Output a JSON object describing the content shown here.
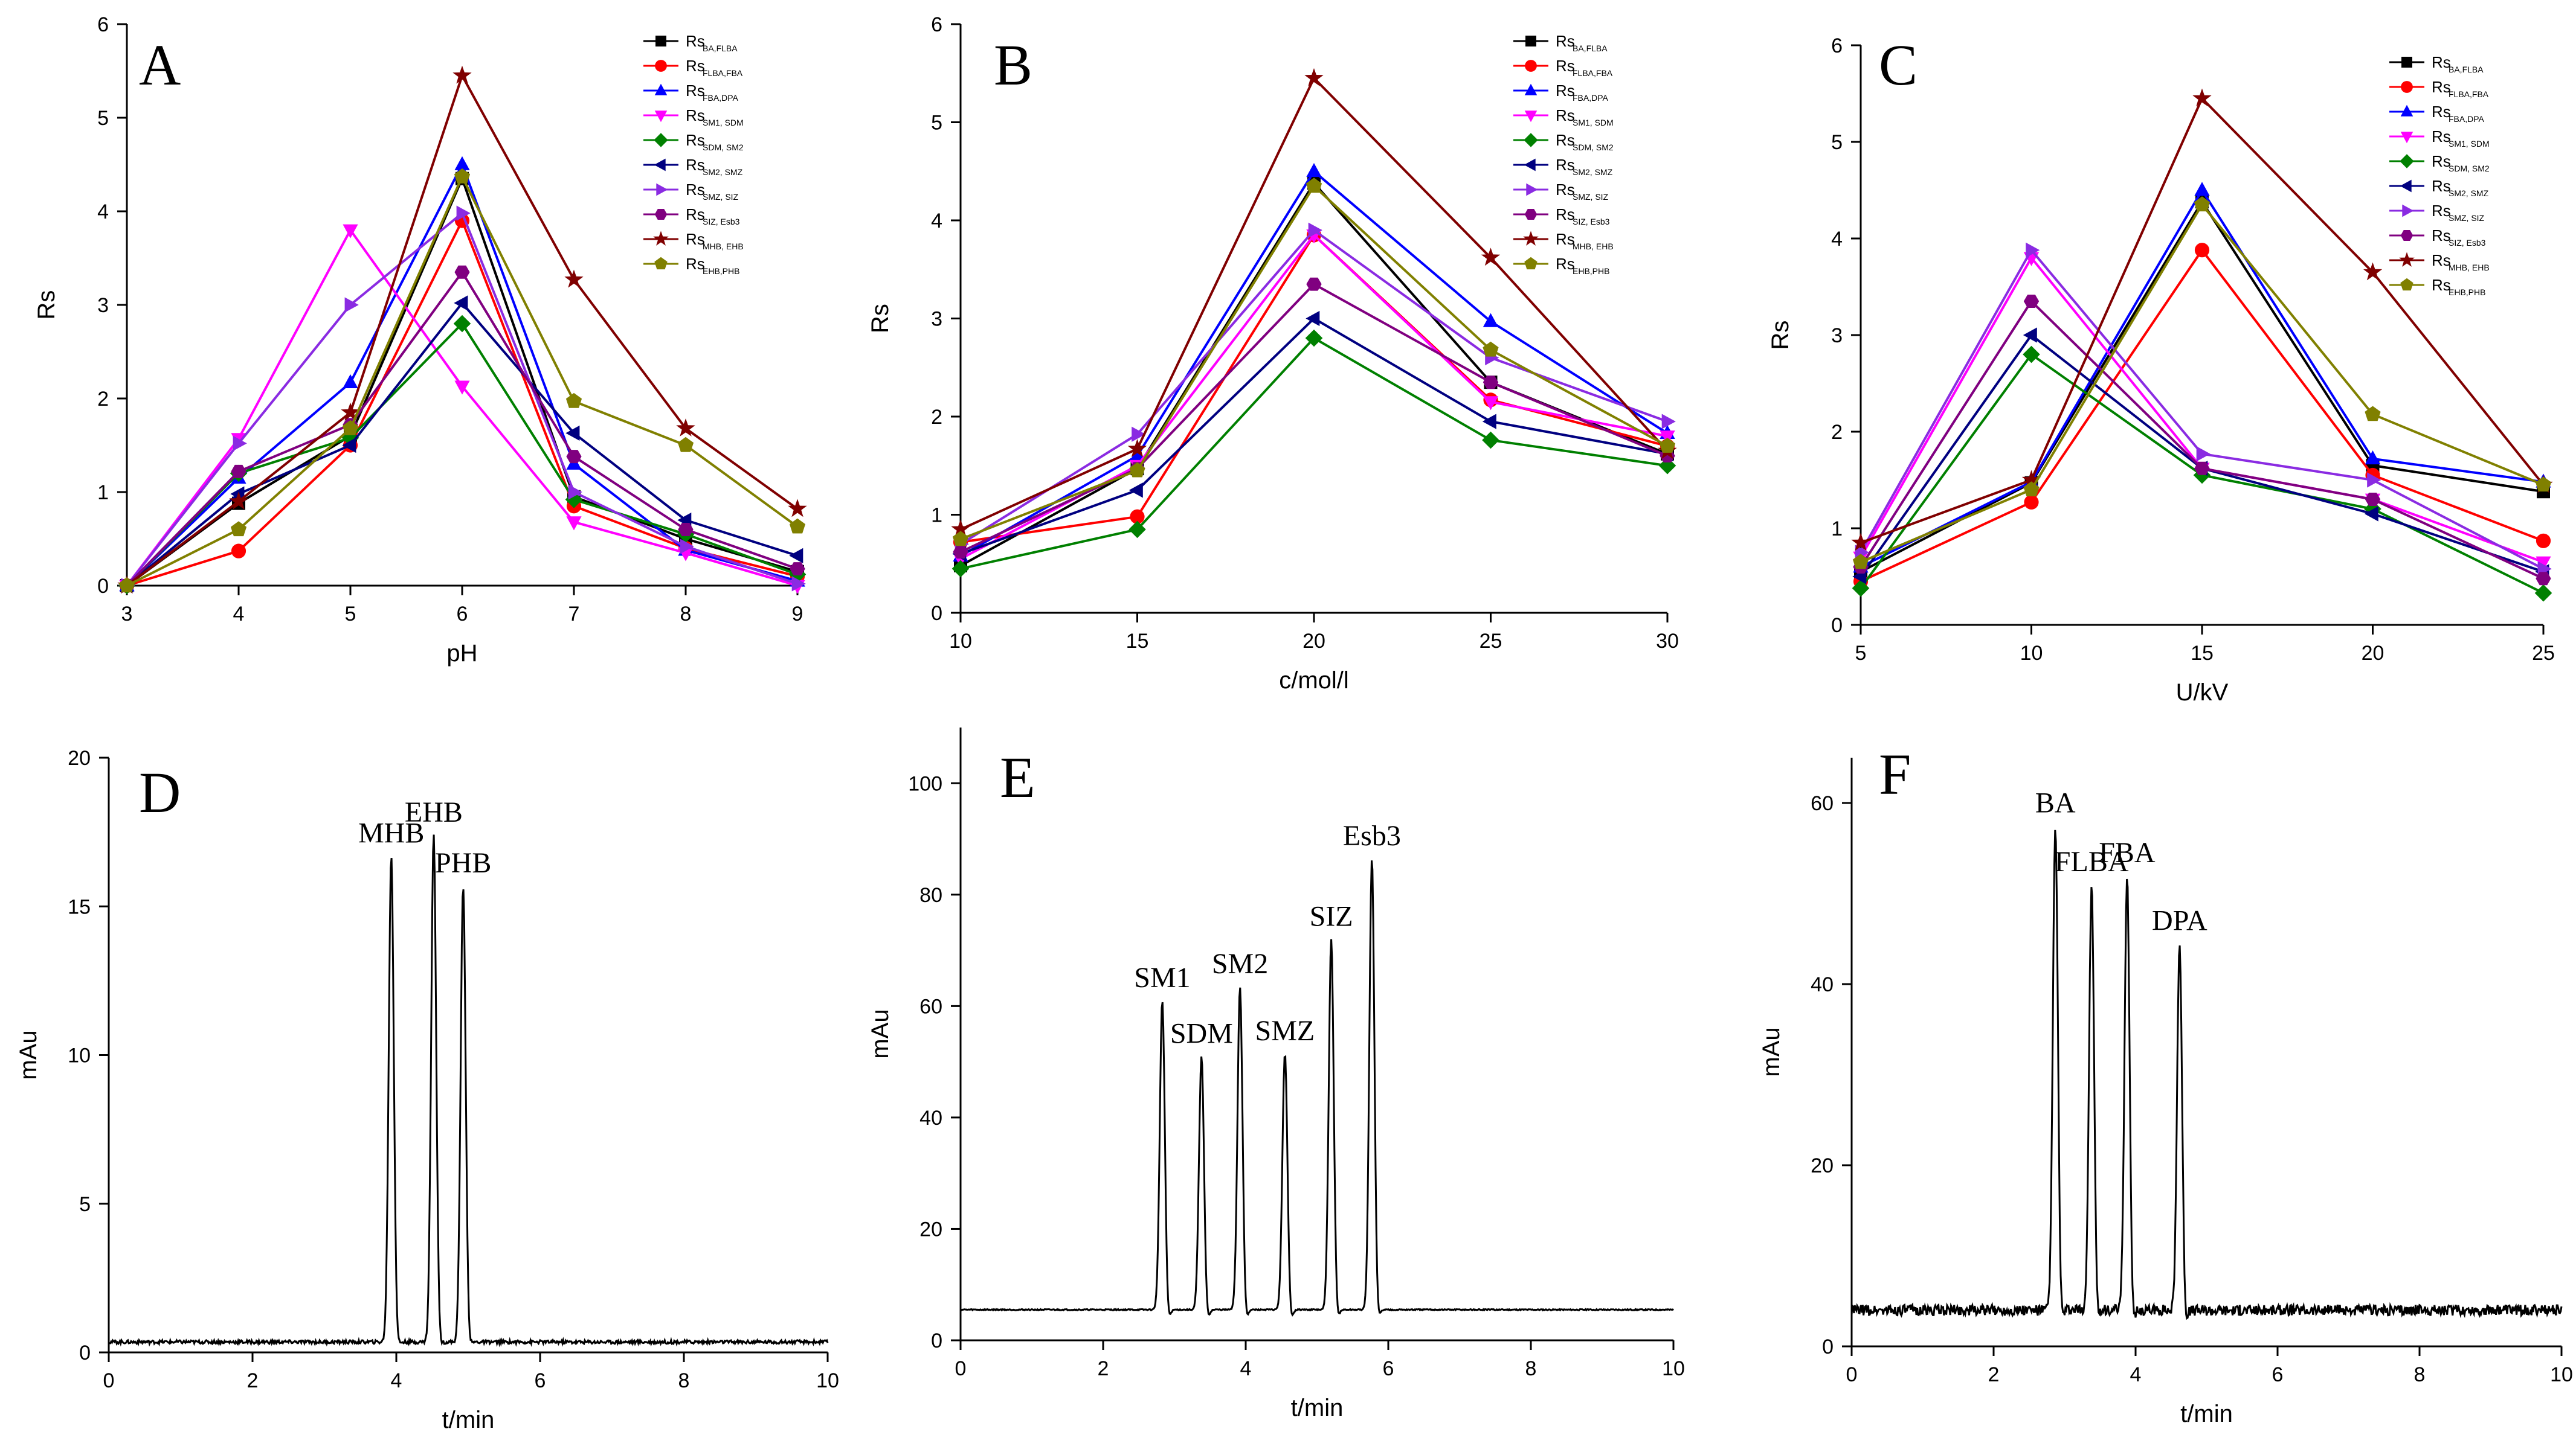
{
  "chart_data": [
    {
      "id": "A",
      "type": "line",
      "panel_letter": "A",
      "xlabel": "pH",
      "ylabel": "Rs",
      "xlim": [
        3,
        9
      ],
      "ylim": [
        0,
        6
      ],
      "xticks": [
        3,
        4,
        5,
        6,
        7,
        8,
        9
      ],
      "yticks": [
        0,
        1,
        2,
        3,
        4,
        5,
        6
      ],
      "x": [
        3,
        4,
        5,
        6,
        7,
        8,
        9
      ],
      "series": [
        {
          "name_main": "Rs",
          "name_sub": "BA,FLBA",
          "color": "#000000",
          "marker": "square",
          "values": [
            0,
            0.88,
            1.6,
            4.35,
            0.95,
            0.5,
            0.15
          ]
        },
        {
          "name_main": "Rs",
          "name_sub": "FLBA,FBA",
          "color": "#ff0000",
          "marker": "circle",
          "values": [
            0,
            0.37,
            1.5,
            3.9,
            0.85,
            0.4,
            0.1
          ]
        },
        {
          "name_main": "Rs",
          "name_sub": "FBA,DPA",
          "color": "#0000ff",
          "marker": "triangle-up",
          "values": [
            0,
            1.15,
            2.17,
            4.5,
            1.3,
            0.38,
            0.05
          ]
        },
        {
          "name_main": "Rs",
          "name_sub": "SM1, SDM",
          "color": "#ff00ff",
          "marker": "triangle-down",
          "values": [
            0,
            1.57,
            3.8,
            2.13,
            0.68,
            0.35,
            0.0
          ]
        },
        {
          "name_main": "Rs",
          "name_sub": "SDM, SM2",
          "color": "#008000",
          "marker": "diamond",
          "values": [
            0,
            1.2,
            1.58,
            2.8,
            0.92,
            0.55,
            0.12
          ]
        },
        {
          "name_main": "Rs",
          "name_sub": "SM2, SMZ",
          "color": "#000080",
          "marker": "triangle-left",
          "values": [
            0,
            0.98,
            1.5,
            3.02,
            1.63,
            0.7,
            0.32
          ]
        },
        {
          "name_main": "Rs",
          "name_sub": "SMZ, SIZ",
          "color": "#8a2be2",
          "marker": "triangle-right",
          "values": [
            0,
            1.52,
            3.0,
            3.98,
            1.0,
            0.42,
            0.02
          ]
        },
        {
          "name_main": "Rs",
          "name_sub": "SIZ, Esb3",
          "color": "#800080",
          "marker": "hexagon",
          "values": [
            0,
            1.22,
            1.72,
            3.35,
            1.38,
            0.6,
            0.18
          ]
        },
        {
          "name_main": "Rs",
          "name_sub": "MHB, EHB",
          "color": "#800000",
          "marker": "star",
          "values": [
            0,
            0.9,
            1.85,
            5.45,
            3.27,
            1.68,
            0.82
          ]
        },
        {
          "name_main": "Rs",
          "name_sub": "EHB,PHB",
          "color": "#808000",
          "marker": "pentagon",
          "values": [
            0,
            0.6,
            1.68,
            4.37,
            1.97,
            1.5,
            0.63
          ]
        }
      ]
    },
    {
      "id": "B",
      "type": "line",
      "panel_letter": "B",
      "xlabel": "c/mol/l",
      "ylabel": "Rs",
      "xlim": [
        10,
        30
      ],
      "ylim": [
        0,
        6
      ],
      "xticks": [
        10,
        15,
        20,
        25,
        30
      ],
      "yticks": [
        0,
        1,
        2,
        3,
        4,
        5,
        6
      ],
      "x": [
        10,
        15,
        20,
        25,
        30
      ],
      "series": [
        {
          "name_main": "Rs",
          "name_sub": "BA,FLBA",
          "color": "#000000",
          "marker": "square",
          "values": [
            0.48,
            1.47,
            4.38,
            2.35,
            1.62
          ]
        },
        {
          "name_main": "Rs",
          "name_sub": "FLBA,FBA",
          "color": "#ff0000",
          "marker": "circle",
          "values": [
            0.72,
            0.98,
            3.85,
            2.17,
            1.7
          ]
        },
        {
          "name_main": "Rs",
          "name_sub": "FBA,DPA",
          "color": "#0000ff",
          "marker": "triangle-up",
          "values": [
            0.58,
            1.6,
            4.5,
            2.97,
            1.83
          ]
        },
        {
          "name_main": "Rs",
          "name_sub": "SM1, SDM",
          "color": "#ff00ff",
          "marker": "triangle-down",
          "values": [
            0.55,
            1.5,
            3.85,
            2.15,
            1.8
          ]
        },
        {
          "name_main": "Rs",
          "name_sub": "SDM, SM2",
          "color": "#008000",
          "marker": "diamond",
          "values": [
            0.45,
            0.85,
            2.8,
            1.76,
            1.5
          ]
        },
        {
          "name_main": "Rs",
          "name_sub": "SM2, SMZ",
          "color": "#000080",
          "marker": "triangle-left",
          "values": [
            0.6,
            1.25,
            3.0,
            1.95,
            1.62
          ]
        },
        {
          "name_main": "Rs",
          "name_sub": "SMZ, SIZ",
          "color": "#8a2be2",
          "marker": "triangle-right",
          "values": [
            0.7,
            1.82,
            3.9,
            2.6,
            1.95
          ]
        },
        {
          "name_main": "Rs",
          "name_sub": "SIZ, Esb3",
          "color": "#800080",
          "marker": "hexagon",
          "values": [
            0.62,
            1.47,
            3.35,
            2.35,
            1.6
          ]
        },
        {
          "name_main": "Rs",
          "name_sub": "MHB, EHB",
          "color": "#800000",
          "marker": "star",
          "values": [
            0.85,
            1.67,
            5.45,
            3.62,
            1.65
          ]
        },
        {
          "name_main": "Rs",
          "name_sub": "EHB,PHB",
          "color": "#808000",
          "marker": "pentagon",
          "values": [
            0.75,
            1.45,
            4.35,
            2.68,
            1.7
          ]
        }
      ]
    },
    {
      "id": "C",
      "type": "line",
      "panel_letter": "C",
      "xlabel": "U/kV",
      "ylabel": "Rs",
      "xlim": [
        5,
        25
      ],
      "ylim": [
        0,
        6
      ],
      "xticks": [
        5,
        10,
        15,
        20,
        25
      ],
      "yticks": [
        0,
        1,
        2,
        3,
        4,
        5,
        6
      ],
      "x": [
        5,
        10,
        15,
        20,
        25
      ],
      "series": [
        {
          "name_main": "Rs",
          "name_sub": "BA,FLBA",
          "color": "#000000",
          "marker": "square",
          "values": [
            0.55,
            1.47,
            4.38,
            1.65,
            1.38
          ]
        },
        {
          "name_main": "Rs",
          "name_sub": "FLBA,FBA",
          "color": "#ff0000",
          "marker": "circle",
          "values": [
            0.45,
            1.27,
            3.88,
            1.55,
            0.87
          ]
        },
        {
          "name_main": "Rs",
          "name_sub": "FBA,DPA",
          "color": "#0000ff",
          "marker": "triangle-up",
          "values": [
            0.6,
            1.48,
            4.5,
            1.72,
            1.48
          ]
        },
        {
          "name_main": "Rs",
          "name_sub": "SM1, SDM",
          "color": "#ff00ff",
          "marker": "triangle-down",
          "values": [
            0.7,
            3.8,
            1.62,
            1.3,
            0.65
          ]
        },
        {
          "name_main": "Rs",
          "name_sub": "SDM, SM2",
          "color": "#008000",
          "marker": "diamond",
          "values": [
            0.38,
            2.8,
            1.55,
            1.2,
            0.33
          ]
        },
        {
          "name_main": "Rs",
          "name_sub": "SM2, SMZ",
          "color": "#000080",
          "marker": "triangle-left",
          "values": [
            0.5,
            3.0,
            1.62,
            1.15,
            0.55
          ]
        },
        {
          "name_main": "Rs",
          "name_sub": "SMZ, SIZ",
          "color": "#8a2be2",
          "marker": "triangle-right",
          "values": [
            0.75,
            3.88,
            1.77,
            1.5,
            0.58
          ]
        },
        {
          "name_main": "Rs",
          "name_sub": "SIZ, Esb3",
          "color": "#800080",
          "marker": "hexagon",
          "values": [
            0.6,
            3.35,
            1.62,
            1.3,
            0.48
          ]
        },
        {
          "name_main": "Rs",
          "name_sub": "MHB, EHB",
          "color": "#800000",
          "marker": "star",
          "values": [
            0.85,
            1.5,
            5.45,
            3.65,
            1.45
          ]
        },
        {
          "name_main": "Rs",
          "name_sub": "EHB,PHB",
          "color": "#808000",
          "marker": "pentagon",
          "values": [
            0.65,
            1.4,
            4.35,
            2.18,
            1.45
          ]
        }
      ]
    },
    {
      "id": "D",
      "type": "line",
      "panel_letter": "D",
      "xlabel": "t/min",
      "ylabel": "mAu",
      "xlim": [
        0,
        10
      ],
      "ylim": [
        0,
        20
      ],
      "xticks": [
        0,
        2,
        4,
        6,
        8,
        10
      ],
      "yticks": [
        0,
        5,
        10,
        15,
        20
      ],
      "baseline": 0.35,
      "noise": 0.06,
      "peaks": [
        {
          "label": "MHB",
          "x": 3.93,
          "height": 16.7
        },
        {
          "label": "EHB",
          "x": 4.52,
          "height": 17.4
        },
        {
          "label": "PHB",
          "x": 4.93,
          "height": 15.7
        }
      ]
    },
    {
      "id": "E",
      "type": "line",
      "panel_letter": "E",
      "xlabel": "t/min",
      "ylabel": "mAu",
      "xlim": [
        0,
        10
      ],
      "ylim": [
        0,
        110
      ],
      "xticks": [
        0,
        2,
        4,
        6,
        8,
        10
      ],
      "yticks": [
        0,
        20,
        40,
        60,
        80,
        100
      ],
      "baseline": 5.5,
      "noise": 0.1,
      "peaks": [
        {
          "label": "SM1",
          "x": 2.83,
          "height": 61
        },
        {
          "label": "SDM",
          "x": 3.38,
          "height": 51
        },
        {
          "label": "SM2",
          "x": 3.92,
          "height": 63.5
        },
        {
          "label": "SMZ",
          "x": 4.55,
          "height": 51.5
        },
        {
          "label": "SIZ",
          "x": 5.2,
          "height": 72
        },
        {
          "label": "Esb3",
          "x": 5.77,
          "height": 86.5
        }
      ]
    },
    {
      "id": "F",
      "type": "line",
      "panel_letter": "F",
      "xlabel": "t/min",
      "ylabel": "mAu",
      "xlim": [
        0,
        10
      ],
      "ylim": [
        0,
        65
      ],
      "xticks": [
        0,
        2,
        4,
        6,
        8,
        10
      ],
      "yticks": [
        0,
        20,
        40,
        60
      ],
      "baseline": 4,
      "noise": 0.6,
      "peaks": [
        {
          "label": "BA",
          "x": 2.87,
          "height": 57.5
        },
        {
          "label": "FLBA",
          "x": 3.38,
          "height": 51
        },
        {
          "label": "FBA",
          "x": 3.88,
          "height": 52
        },
        {
          "label": "DPA",
          "x": 4.62,
          "height": 44.5
        }
      ]
    }
  ]
}
